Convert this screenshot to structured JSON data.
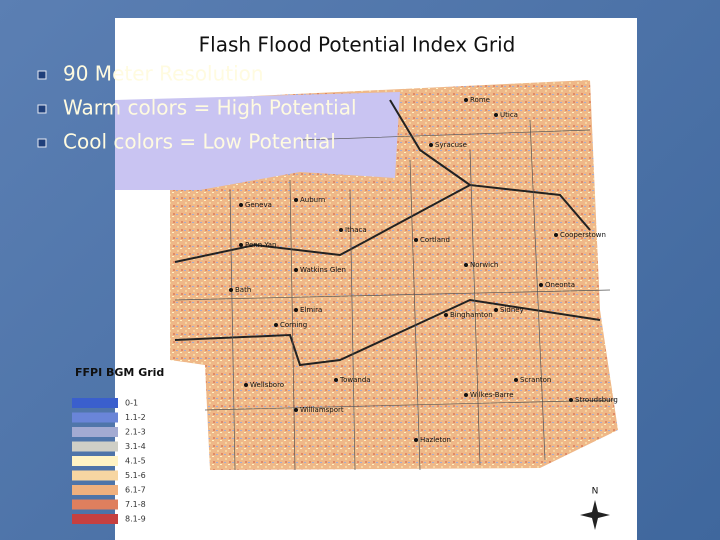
{
  "slide": {
    "bullets": [
      "90 Meter Resolution",
      "Warm colors = High Potential",
      "Cool colors = Low Potential"
    ]
  },
  "map": {
    "title": "Flash Flood Potential Index Grid",
    "places": [
      "Syracuse",
      "Auburn",
      "Geneva",
      "Penn Yan",
      "Watkins Glen",
      "Bath",
      "Corning",
      "Elmira",
      "Ithaca",
      "Cortland",
      "Norwich",
      "Binghamton",
      "Oneonta",
      "Utica",
      "Rome",
      "Cooperstown",
      "Wellsboro",
      "Towanda",
      "Williamsport",
      "Scranton",
      "Wilkes-Barre",
      "Stroudsburg",
      "Hazleton",
      "Sidney"
    ],
    "legend": {
      "title": "FFPI BGM Grid",
      "items": [
        {
          "label": "0-1",
          "color": "#3a5fcd"
        },
        {
          "label": "1.1-2",
          "color": "#6a85d8"
        },
        {
          "label": "2.1-3",
          "color": "#a3aad2"
        },
        {
          "label": "3.1-4",
          "color": "#cfcfc6"
        },
        {
          "label": "4.1-5",
          "color": "#fff3c4"
        },
        {
          "label": "5.1-6",
          "color": "#f7d6a2"
        },
        {
          "label": "6.1-7",
          "color": "#efb07e"
        },
        {
          "label": "7.1-8",
          "color": "#df7f5e"
        },
        {
          "label": "8.1-9",
          "color": "#c64040"
        }
      ]
    },
    "compass": "N"
  }
}
